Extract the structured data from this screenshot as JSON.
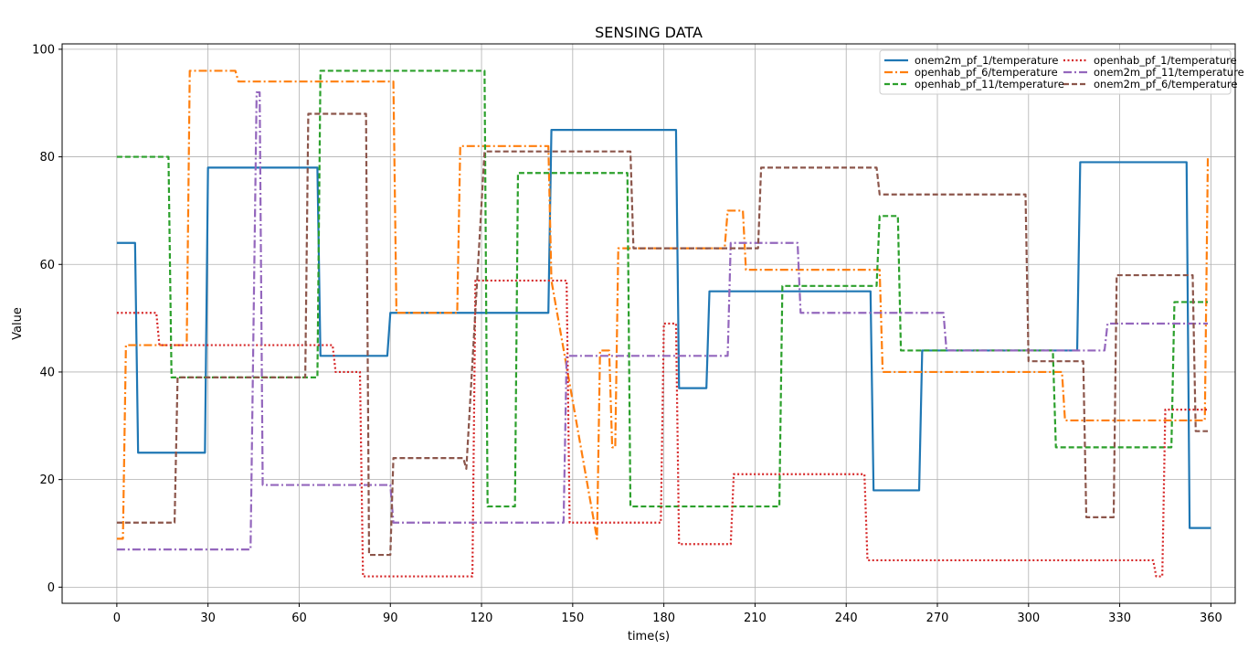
{
  "chart_data": {
    "type": "line",
    "title": "SENSING DATA",
    "xlabel": "time(s)",
    "ylabel": "Value",
    "xlim": [
      -18,
      368
    ],
    "ylim": [
      -3,
      101
    ],
    "xticks": [
      0,
      30,
      60,
      90,
      120,
      150,
      180,
      210,
      240,
      270,
      300,
      330,
      360
    ],
    "yticks": [
      0,
      20,
      40,
      60,
      80,
      100
    ],
    "grid": true,
    "legend_position": "top-right",
    "series": [
      {
        "name": "onem2m_pf_1/temperature",
        "color": "#1f77b4",
        "dash": "solid",
        "points": [
          [
            0,
            64
          ],
          [
            6,
            64
          ],
          [
            7,
            25
          ],
          [
            29,
            25
          ],
          [
            30,
            78
          ],
          [
            66,
            78
          ],
          [
            67,
            43
          ],
          [
            89,
            43
          ],
          [
            90,
            51
          ],
          [
            142,
            51
          ],
          [
            143,
            85
          ],
          [
            184,
            85
          ],
          [
            185,
            37
          ],
          [
            194,
            37
          ],
          [
            195,
            55
          ],
          [
            248,
            55
          ],
          [
            249,
            18
          ],
          [
            264,
            18
          ],
          [
            265,
            44
          ],
          [
            316,
            44
          ],
          [
            317,
            79
          ],
          [
            352,
            79
          ],
          [
            353,
            11
          ],
          [
            360,
            11
          ]
        ]
      },
      {
        "name": "openhab_pf_6/temperature",
        "color": "#ff7f0e",
        "dash": "dashdot",
        "points": [
          [
            0,
            9
          ],
          [
            2,
            9
          ],
          [
            3,
            45
          ],
          [
            23,
            45
          ],
          [
            24,
            96
          ],
          [
            39,
            96
          ],
          [
            40,
            94
          ],
          [
            91,
            94
          ],
          [
            92,
            51
          ],
          [
            112,
            51
          ],
          [
            113,
            82
          ],
          [
            142,
            82
          ],
          [
            143,
            57
          ],
          [
            158,
            9
          ],
          [
            159,
            44
          ],
          [
            162,
            44
          ],
          [
            163,
            26
          ],
          [
            164,
            26
          ],
          [
            165,
            63
          ],
          [
            200,
            63
          ],
          [
            201,
            70
          ],
          [
            206,
            70
          ],
          [
            207,
            59
          ],
          [
            251,
            59
          ],
          [
            252,
            40
          ],
          [
            311,
            40
          ],
          [
            312,
            31
          ],
          [
            358,
            31
          ],
          [
            359,
            80
          ]
        ]
      },
      {
        "name": "openhab_pf_11/temperature",
        "color": "#2ca02c",
        "dash": "dashed",
        "points": [
          [
            0,
            80
          ],
          [
            17,
            80
          ],
          [
            18,
            39
          ],
          [
            66,
            39
          ],
          [
            67,
            96
          ],
          [
            121,
            96
          ],
          [
            122,
            15
          ],
          [
            131,
            15
          ],
          [
            132,
            77
          ],
          [
            168,
            77
          ],
          [
            169,
            15
          ],
          [
            218,
            15
          ],
          [
            219,
            56
          ],
          [
            250,
            56
          ],
          [
            251,
            69
          ],
          [
            257,
            69
          ],
          [
            258,
            44
          ],
          [
            308,
            44
          ],
          [
            309,
            26
          ],
          [
            347,
            26
          ],
          [
            348,
            53
          ],
          [
            359,
            53
          ]
        ]
      },
      {
        "name": "openhab_pf_1/temperature",
        "color": "#d62728",
        "dash": "dotted",
        "points": [
          [
            0,
            51
          ],
          [
            13,
            51
          ],
          [
            14,
            45
          ],
          [
            71,
            45
          ],
          [
            72,
            40
          ],
          [
            80,
            40
          ],
          [
            81,
            2
          ],
          [
            117,
            2
          ],
          [
            118,
            57
          ],
          [
            148,
            57
          ],
          [
            149,
            12
          ],
          [
            179,
            12
          ],
          [
            180,
            49
          ],
          [
            184,
            49
          ],
          [
            185,
            8
          ],
          [
            202,
            8
          ],
          [
            203,
            21
          ],
          [
            246,
            21
          ],
          [
            247,
            5
          ],
          [
            341,
            5
          ],
          [
            342,
            2
          ],
          [
            344,
            2
          ],
          [
            345,
            33
          ],
          [
            359,
            33
          ]
        ]
      },
      {
        "name": "onem2m_pf_11/temperature",
        "color": "#9467bd",
        "dash": "dashdot",
        "points": [
          [
            0,
            7
          ],
          [
            44,
            7
          ],
          [
            46,
            92
          ],
          [
            47,
            92
          ],
          [
            48,
            19
          ],
          [
            90,
            19
          ],
          [
            91,
            12
          ],
          [
            147,
            12
          ],
          [
            148,
            43
          ],
          [
            201,
            43
          ],
          [
            202,
            64
          ],
          [
            224,
            64
          ],
          [
            225,
            51
          ],
          [
            272,
            51
          ],
          [
            273,
            44
          ],
          [
            325,
            44
          ],
          [
            326,
            49
          ],
          [
            359,
            49
          ]
        ]
      },
      {
        "name": "onem2m_pf_6/temperature",
        "color": "#8c564b",
        "dash": "dashed",
        "points": [
          [
            0,
            12
          ],
          [
            19,
            12
          ],
          [
            20,
            39
          ],
          [
            62,
            39
          ],
          [
            63,
            88
          ],
          [
            82,
            88
          ],
          [
            83,
            6
          ],
          [
            90,
            6
          ],
          [
            91,
            24
          ],
          [
            114,
            24
          ],
          [
            115,
            22
          ],
          [
            121,
            81
          ],
          [
            169,
            81
          ],
          [
            170,
            63
          ],
          [
            211,
            63
          ],
          [
            212,
            78
          ],
          [
            250,
            78
          ],
          [
            251,
            73
          ],
          [
            299,
            73
          ],
          [
            300,
            42
          ],
          [
            318,
            42
          ],
          [
            319,
            13
          ],
          [
            328,
            13
          ],
          [
            329,
            58
          ],
          [
            354,
            58
          ],
          [
            355,
            29
          ],
          [
            359,
            29
          ]
        ]
      }
    ]
  }
}
